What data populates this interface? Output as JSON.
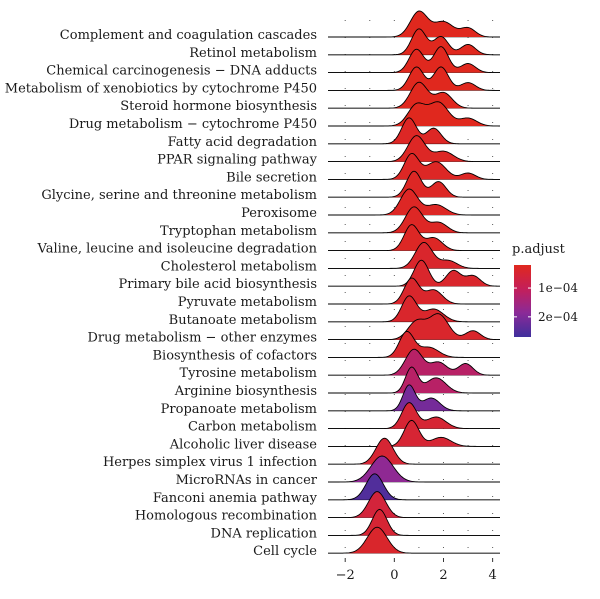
{
  "chart_data": {
    "type": "ridgeline",
    "xlim": [
      -2.7,
      4.3
    ],
    "x_ticks": [
      -2,
      0,
      2,
      4
    ],
    "x_tick_labels": [
      "−2",
      "0",
      "2",
      "4"
    ],
    "grid": true,
    "legend": {
      "title": "p.adjust",
      "position": "right",
      "colors": [
        "#e0281e",
        "#c41f5a",
        "#8a2a98",
        "#3f2f9c"
      ],
      "ticks": [
        {
          "value": 0.0001,
          "label": "1e−04"
        },
        {
          "value": 0.0002,
          "label": "2e−04"
        }
      ],
      "range": [
        2e-05,
        0.00027
      ]
    },
    "series": [
      {
        "name": "Complement and coagulation cascades",
        "peaks": [
          [
            1.0,
            0.35,
            1.0
          ],
          [
            2.0,
            0.4,
            0.6
          ],
          [
            3.0,
            0.3,
            0.35
          ]
        ],
        "p_adjust": 2e-05
      },
      {
        "name": "Retinol metabolism",
        "peaks": [
          [
            1.0,
            0.3,
            1.0
          ],
          [
            1.9,
            0.3,
            0.7
          ],
          [
            3.0,
            0.3,
            0.4
          ]
        ],
        "p_adjust": 2e-05
      },
      {
        "name": "Chemical carcinogenesis − DNA adducts",
        "peaks": [
          [
            0.9,
            0.3,
            0.9
          ],
          [
            1.9,
            0.3,
            1.0
          ],
          [
            3.0,
            0.3,
            0.35
          ]
        ],
        "p_adjust": 2e-05
      },
      {
        "name": "Metabolism of xenobiotics by cytochrome P450",
        "peaks": [
          [
            0.9,
            0.3,
            0.9
          ],
          [
            1.9,
            0.3,
            0.9
          ],
          [
            3.0,
            0.3,
            0.3
          ]
        ],
        "p_adjust": 2e-05
      },
      {
        "name": "Steroid hormone biosynthesis",
        "peaks": [
          [
            1.0,
            0.35,
            1.0
          ],
          [
            2.0,
            0.35,
            0.6
          ]
        ],
        "p_adjust": 2e-05
      },
      {
        "name": "Drug metabolism − cytochrome P450",
        "peaks": [
          [
            0.9,
            0.35,
            0.8
          ],
          [
            1.8,
            0.4,
            0.9
          ],
          [
            3.0,
            0.35,
            0.3
          ]
        ],
        "p_adjust": 2e-05
      },
      {
        "name": "Fatty acid degradation",
        "peaks": [
          [
            0.6,
            0.3,
            1.0
          ],
          [
            1.6,
            0.3,
            0.6
          ]
        ],
        "p_adjust": 3e-05
      },
      {
        "name": "PPAR signaling pathway",
        "peaks": [
          [
            0.9,
            0.35,
            1.0
          ],
          [
            2.0,
            0.4,
            0.4
          ]
        ],
        "p_adjust": 3e-05
      },
      {
        "name": "Bile secretion",
        "peaks": [
          [
            0.7,
            0.3,
            1.0
          ],
          [
            1.7,
            0.4,
            0.7
          ],
          [
            3.0,
            0.3,
            0.25
          ]
        ],
        "p_adjust": 3e-05
      },
      {
        "name": "Glycine, serine and threonine metabolism",
        "peaks": [
          [
            0.8,
            0.3,
            1.0
          ],
          [
            1.8,
            0.3,
            0.6
          ]
        ],
        "p_adjust": 3e-05
      },
      {
        "name": "Peroxisome",
        "peaks": [
          [
            0.6,
            0.35,
            1.0
          ],
          [
            1.7,
            0.4,
            0.4
          ]
        ],
        "p_adjust": 3e-05
      },
      {
        "name": "Tryptophan metabolism",
        "peaks": [
          [
            0.8,
            0.35,
            1.0
          ],
          [
            1.8,
            0.35,
            0.4
          ]
        ],
        "p_adjust": 3e-05
      },
      {
        "name": "Valine, leucine and isoleucine degradation",
        "peaks": [
          [
            0.7,
            0.3,
            1.0
          ],
          [
            1.6,
            0.35,
            0.5
          ]
        ],
        "p_adjust": 3e-05
      },
      {
        "name": "Cholesterol metabolism",
        "peaks": [
          [
            1.2,
            0.35,
            1.0
          ],
          [
            2.2,
            0.35,
            0.3
          ]
        ],
        "p_adjust": 4e-05
      },
      {
        "name": "Primary bile acid biosynthesis",
        "peaks": [
          [
            1.1,
            0.3,
            1.0
          ],
          [
            2.4,
            0.3,
            0.6
          ],
          [
            3.2,
            0.3,
            0.4
          ]
        ],
        "p_adjust": 4e-05
      },
      {
        "name": "Pyruvate metabolism",
        "peaks": [
          [
            0.7,
            0.3,
            1.0
          ],
          [
            1.6,
            0.35,
            0.55
          ]
        ],
        "p_adjust": 4e-05
      },
      {
        "name": "Butanoate metabolism",
        "peaks": [
          [
            0.6,
            0.3,
            1.0
          ],
          [
            1.6,
            0.4,
            0.5
          ]
        ],
        "p_adjust": 4e-05
      },
      {
        "name": "Drug metabolism − other enzymes",
        "peaks": [
          [
            0.9,
            0.35,
            0.7
          ],
          [
            1.8,
            0.4,
            1.0
          ],
          [
            3.2,
            0.3,
            0.35
          ]
        ],
        "p_adjust": 4e-05
      },
      {
        "name": "Biosynthesis of cofactors",
        "peaks": [
          [
            0.5,
            0.3,
            1.0
          ],
          [
            1.4,
            0.4,
            0.4
          ]
        ],
        "p_adjust": 4e-05
      },
      {
        "name": "Tyrosine metabolism",
        "peaks": [
          [
            0.8,
            0.35,
            1.0
          ],
          [
            1.8,
            0.35,
            0.5
          ],
          [
            2.9,
            0.3,
            0.45
          ]
        ],
        "p_adjust": 0.00012
      },
      {
        "name": "Arginine biosynthesis",
        "peaks": [
          [
            0.7,
            0.25,
            1.0
          ],
          [
            1.7,
            0.4,
            0.6
          ]
        ],
        "p_adjust": 0.00012
      },
      {
        "name": "Propanoate metabolism",
        "peaks": [
          [
            0.6,
            0.25,
            1.0
          ],
          [
            1.5,
            0.35,
            0.5
          ]
        ],
        "p_adjust": 0.00021
      },
      {
        "name": "Carbon metabolism",
        "peaks": [
          [
            0.6,
            0.3,
            1.0
          ],
          [
            1.7,
            0.4,
            0.45
          ]
        ],
        "p_adjust": 5e-05
      },
      {
        "name": "Alcoholic liver disease",
        "peaks": [
          [
            0.7,
            0.3,
            1.0
          ],
          [
            1.9,
            0.4,
            0.35
          ]
        ],
        "p_adjust": 5e-05
      },
      {
        "name": "Herpes simplex virus 1 infection",
        "peaks": [
          [
            -0.4,
            0.35,
            1.0
          ]
        ],
        "p_adjust": 5e-05
      },
      {
        "name": "MicroRNAs in cancer",
        "peaks": [
          [
            -0.5,
            0.45,
            1.0
          ]
        ],
        "p_adjust": 0.00018
      },
      {
        "name": "Fanconi anemia pathway",
        "peaks": [
          [
            -0.8,
            0.35,
            1.0
          ]
        ],
        "p_adjust": 0.00025
      },
      {
        "name": "Homologous recombination",
        "peaks": [
          [
            -0.7,
            0.35,
            1.0
          ]
        ],
        "p_adjust": 6e-05
      },
      {
        "name": "DNA replication",
        "peaks": [
          [
            -0.6,
            0.3,
            1.0
          ]
        ],
        "p_adjust": 5e-05
      },
      {
        "name": "Cell cycle",
        "peaks": [
          [
            -0.7,
            0.4,
            1.0
          ]
        ],
        "p_adjust": 4e-05
      }
    ]
  }
}
